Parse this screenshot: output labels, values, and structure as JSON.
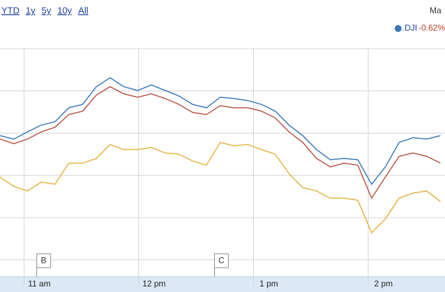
{
  "range_links": [
    "YTD",
    "1y",
    "5y",
    "10y",
    "All"
  ],
  "top_right_text": "Ma",
  "chart_data": {
    "type": "line",
    "x": [
      10.79,
      10.91,
      11.03,
      11.15,
      11.27,
      11.39,
      11.51,
      11.63,
      11.75,
      11.87,
      11.99,
      12.11,
      12.23,
      12.35,
      12.47,
      12.59,
      12.71,
      12.83,
      12.95,
      13.07,
      13.19,
      13.31,
      13.43,
      13.55,
      13.67,
      13.79,
      13.91,
      14.03,
      14.15,
      14.27,
      14.39,
      14.51,
      14.63
    ],
    "series": [
      {
        "name": ".DJI",
        "legend_value": "-0.62%",
        "color": "#3d7ab8",
        "values": [
          2.94,
          2.86,
          3.03,
          3.19,
          3.27,
          3.6,
          3.68,
          4.1,
          4.31,
          4.1,
          4.01,
          4.14,
          4.01,
          3.88,
          3.68,
          3.6,
          3.85,
          3.82,
          3.77,
          3.68,
          3.52,
          3.19,
          2.94,
          2.61,
          2.37,
          2.4,
          2.37,
          1.79,
          2.2,
          2.78,
          2.89,
          2.86,
          2.94
        ]
      },
      {
        "color": "#b8564a",
        "values": [
          2.86,
          2.75,
          2.86,
          3.03,
          3.14,
          3.44,
          3.52,
          3.9,
          4.1,
          3.93,
          3.85,
          3.93,
          3.82,
          3.68,
          3.49,
          3.44,
          3.65,
          3.6,
          3.6,
          3.52,
          3.36,
          3.03,
          2.78,
          2.4,
          2.2,
          2.29,
          2.24,
          1.46,
          1.96,
          2.45,
          2.53,
          2.45,
          2.29
        ]
      },
      {
        "color": "#e3b341",
        "values": [
          1.96,
          1.74,
          1.63,
          1.84,
          1.79,
          2.29,
          2.29,
          2.4,
          2.73,
          2.61,
          2.61,
          2.66,
          2.53,
          2.5,
          2.34,
          2.24,
          2.78,
          2.7,
          2.73,
          2.61,
          2.5,
          2.04,
          1.71,
          1.63,
          1.46,
          1.46,
          1.41,
          0.64,
          0.97,
          1.46,
          1.58,
          1.63,
          1.38
        ]
      }
    ],
    "xlim": [
      10.79,
      14.67
    ],
    "xticks": [
      {
        "value": 11,
        "label": "11 am"
      },
      {
        "value": 12,
        "label": "12 pm"
      },
      {
        "value": 13,
        "label": "1 pm"
      },
      {
        "value": 14,
        "label": "2 pm"
      }
    ],
    "ylim": [
      -0.4,
      5
    ],
    "yticks": [
      0,
      1,
      2,
      3,
      4,
      5
    ],
    "grid": true,
    "annotations": [
      {
        "label": "B",
        "x": 11.11
      },
      {
        "label": "C",
        "x": 12.66
      }
    ]
  }
}
